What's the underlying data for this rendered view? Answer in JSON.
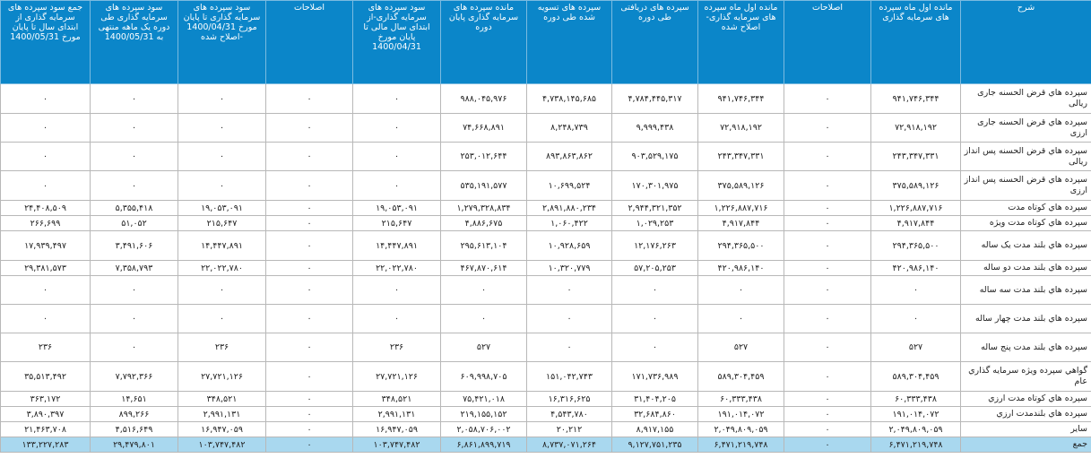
{
  "headers": [
    "شرح",
    "مانده اول ماه سپرده های سرمایه گذاری",
    "اصلاحات",
    "مانده اول ماه سپرده های سرمایه گذاری- اصلاح شده",
    "سپرده های دریافتی طی دوره",
    "سپرده های تسویه شده طی دوره",
    "مانده سپرده های سرمایه گذاری پایان دوره",
    "سود سپرده های سرمایه گذاری-از ابتدای سال مالی تا پایان مورخ 1400/04/31",
    "اصلاحات",
    "سود سپرده های سرمایه گذاری تا پایان مورخ 1400/04/31 -اصلاح شده",
    "سود سپرده های سرمایه گذاری طی دوره یک ماهه منتهی به 1400/05/31",
    "جمع سود سپرده های سرمایه گذاری از ابتدای سال تا پایان مورخ 1400/05/31"
  ],
  "rows": [
    [
      "سپرده هاي قرض الحسنه جاری ریالی",
      "۹۴۱,۷۴۶,۳۴۴",
      "۰",
      "۹۴۱,۷۴۶,۳۴۴",
      "۴,۷۸۴,۴۴۵,۳۱۷",
      "۴,۷۳۸,۱۴۵,۶۸۵",
      "۹۸۸,۰۴۵,۹۷۶",
      "۰",
      "۰",
      "۰",
      "۰",
      "۰"
    ],
    [
      "سپرده هاي قرض الحسنه جاری ارزی",
      "۷۲,۹۱۸,۱۹۲",
      "۰",
      "۷۲,۹۱۸,۱۹۲",
      "۹,۹۹۹,۴۳۸",
      "۸,۲۴۸,۷۳۹",
      "۷۴,۶۶۸,۸۹۱",
      "۰",
      "۰",
      "۰",
      "۰",
      "۰"
    ],
    [
      "سپرده هاي قرض الحسنه پس انداز ریالی",
      "۲۴۳,۳۴۷,۳۳۱",
      "۰",
      "۲۴۳,۳۴۷,۳۳۱",
      "۹۰۳,۵۲۹,۱۷۵",
      "۸۹۳,۸۶۳,۸۶۲",
      "۲۵۳,۰۱۲,۶۴۴",
      "۰",
      "۰",
      "۰",
      "۰",
      "۰"
    ],
    [
      "سپرده هاي قرض الحسنه پس انداز ارزی",
      "۳۷۵,۵۸۹,۱۲۶",
      "۰",
      "۳۷۵,۵۸۹,۱۲۶",
      "۱۷۰,۳۰۱,۹۷۵",
      "۱۰,۶۹۹,۵۲۴",
      "۵۳۵,۱۹۱,۵۷۷",
      "۰",
      "۰",
      "۰",
      "۰",
      "۰"
    ],
    [
      "سپرده هاي کوتاه مدت",
      "۱,۲۲۶,۸۸۷,۷۱۶",
      "۰",
      "۱,۲۲۶,۸۸۷,۷۱۶",
      "۲,۹۴۴,۳۲۱,۳۵۲",
      "۲,۸۹۱,۸۸۰,۲۳۴",
      "۱,۲۷۹,۳۲۸,۸۳۴",
      "۱۹,۰۵۳,۰۹۱",
      "۰",
      "۱۹,۰۵۳,۰۹۱",
      "۵,۳۵۵,۴۱۸",
      "۲۴,۴۰۸,۵۰۹"
    ],
    [
      "سپرده هاي کوتاه مدت ویژه",
      "۴,۹۱۷,۸۴۴",
      "۰",
      "۴,۹۱۷,۸۴۴",
      "۱,۰۲۹,۲۵۳",
      "۱,۰۶۰,۴۲۲",
      "۴,۸۸۶,۶۷۵",
      "۲۱۵,۶۴۷",
      "۰",
      "۲۱۵,۶۴۷",
      "۵۱,۰۵۲",
      "۲۶۶,۶۹۹"
    ],
    [
      "سپرده هاي بلند مدت یک ساله",
      "۲۹۴,۳۶۵,۵۰۰",
      "۰",
      "۲۹۴,۳۶۵,۵۰۰",
      "۱۲,۱۷۶,۲۶۳",
      "۱۰,۹۲۸,۶۵۹",
      "۲۹۵,۶۱۳,۱۰۴",
      "۱۴,۴۴۷,۸۹۱",
      "۰",
      "۱۴,۴۴۷,۸۹۱",
      "۳,۴۹۱,۶۰۶",
      "۱۷,۹۳۹,۴۹۷"
    ],
    [
      "سپرده هاي بلند مدت دو ساله",
      "۴۲۰,۹۸۶,۱۴۰",
      "۰",
      "۴۲۰,۹۸۶,۱۴۰",
      "۵۷,۲۰۵,۲۵۳",
      "۱۰,۳۲۰,۷۷۹",
      "۴۶۷,۸۷۰,۶۱۴",
      "۲۲,۰۲۲,۷۸۰",
      "۰",
      "۲۲,۰۲۲,۷۸۰",
      "۷,۳۵۸,۷۹۳",
      "۲۹,۳۸۱,۵۷۳"
    ],
    [
      "سپرده هاي بلند مدت سه ساله",
      "۰",
      "۰",
      "۰",
      "۰",
      "۰",
      "۰",
      "۰",
      "۰",
      "۰",
      "۰",
      "۰"
    ],
    [
      "سپرده هاي بلند مدت چهار ساله",
      "۰",
      "۰",
      "۰",
      "۰",
      "۰",
      "۰",
      "۰",
      "۰",
      "۰",
      "۰",
      "۰"
    ],
    [
      "سپرده هاي بلند مدت پنج ساله",
      "۵۲۷",
      "۰",
      "۵۲۷",
      "۰",
      "۰",
      "۵۲۷",
      "۲۳۶",
      "۰",
      "۲۳۶",
      "۰",
      "۲۳۶"
    ],
    [
      "گواهي سپرده ويژه سرمايه گذاري عام",
      "۵۸۹,۳۰۴,۴۵۹",
      "۰",
      "۵۸۹,۳۰۴,۴۵۹",
      "۱۷۱,۷۳۶,۹۸۹",
      "۱۵۱,۰۴۲,۷۴۳",
      "۶۰۹,۹۹۸,۷۰۵",
      "۲۷,۷۲۱,۱۲۶",
      "۰",
      "۲۷,۷۲۱,۱۲۶",
      "۷,۷۹۲,۳۶۶",
      "۳۵,۵۱۳,۴۹۲"
    ],
    [
      "سپرده هاي کوتاه مدت ارزي",
      "۶۰,۳۳۳,۴۳۸",
      "۰",
      "۶۰,۳۳۳,۴۳۸",
      "۳۱,۴۰۴,۲۰۵",
      "۱۶,۳۱۶,۶۲۵",
      "۷۵,۴۲۱,۰۱۸",
      "۳۴۸,۵۲۱",
      "۰",
      "۳۴۸,۵۲۱",
      "۱۴,۶۵۱",
      "۳۶۳,۱۷۲"
    ],
    [
      "سپرده هاي بلندمدت ارزي",
      "۱۹۱,۰۱۴,۰۷۲",
      "۰",
      "۱۹۱,۰۱۴,۰۷۲",
      "۳۲,۶۸۴,۸۶۰",
      "۴,۵۴۳,۷۸۰",
      "۲۱۹,۱۵۵,۱۵۲",
      "۲,۹۹۱,۱۳۱",
      "۰",
      "۲,۹۹۱,۱۳۱",
      "۸۹۹,۲۶۶",
      "۳,۸۹۰,۳۹۷"
    ],
    [
      "ساير",
      "۲,۰۴۹,۸۰۹,۰۵۹",
      "۰",
      "۲,۰۴۹,۸۰۹,۰۵۹",
      "۸,۹۱۷,۱۵۵",
      "۲۰,۲۱۲",
      "۲,۰۵۸,۷۰۶,۰۰۲",
      "۱۶,۹۴۷,۰۵۹",
      "۰",
      "۱۶,۹۴۷,۰۵۹",
      "۴,۵۱۶,۶۴۹",
      "۲۱,۴۶۳,۷۰۸"
    ]
  ],
  "total": [
    "جمع",
    "۶,۴۷۱,۲۱۹,۷۴۸",
    "۰",
    "۶,۴۷۱,۲۱۹,۷۴۸",
    "۹,۱۲۷,۷۵۱,۲۳۵",
    "۸,۷۳۷,۰۷۱,۲۶۴",
    "۶,۸۶۱,۸۹۹,۷۱۹",
    "۱۰۳,۷۴۷,۴۸۲",
    "۰",
    "۱۰۳,۷۴۷,۴۸۲",
    "۲۹,۴۷۹,۸۰۱",
    "۱۳۳,۲۲۷,۲۸۳"
  ]
}
